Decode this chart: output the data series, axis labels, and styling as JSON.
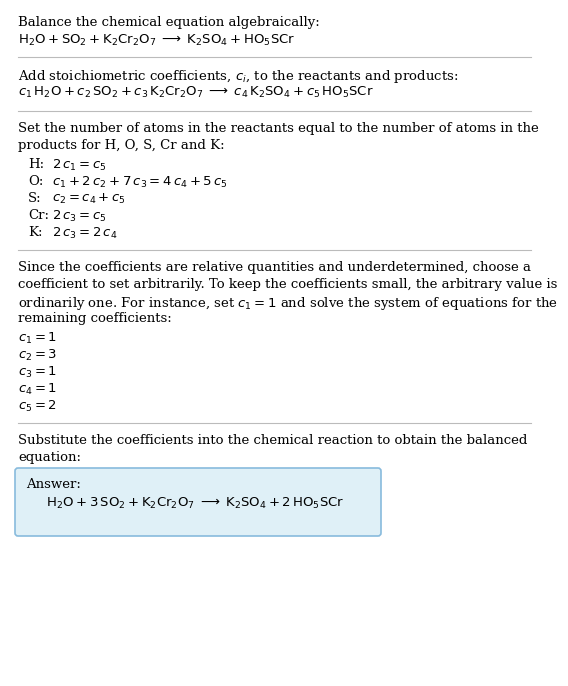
{
  "bg_color": "#ffffff",
  "line_color": "#bbbbbb",
  "answer_box_color": "#dff0f7",
  "answer_box_border": "#88bbdd",
  "text_color": "#000000",
  "title": "Balance the chemical equation algebraically:",
  "eq1": "$\\mathrm{H_2O + SO_2 + K_2Cr_2O_7 \\;\\longrightarrow\\; K_2SO_4 + HO_5SCr}$",
  "sec2_text": "Add stoichiometric coefficients, $c_i$, to the reactants and products:",
  "eq2": "$c_1\\,\\mathrm{H_2O} + c_2\\,\\mathrm{SO_2} + c_3\\,\\mathrm{K_2Cr_2O_7} \\;\\longrightarrow\\; c_4\\,\\mathrm{K_2SO_4} + c_5\\,\\mathrm{HO_5SCr}$",
  "sec3_text1": "Set the number of atoms in the reactants equal to the number of atoms in the",
  "sec3_text2": "products for H, O, S, Cr and K:",
  "equations": [
    [
      "H:",
      "$2\\,c_1 = c_5$"
    ],
    [
      "O:",
      "$c_1 + 2\\,c_2 + 7\\,c_3 = 4\\,c_4 + 5\\,c_5$"
    ],
    [
      "S:",
      "$c_2 = c_4 + c_5$"
    ],
    [
      "Cr:",
      "$2\\,c_3 = c_5$"
    ],
    [
      "K:",
      "$2\\,c_3 = 2\\,c_4$"
    ]
  ],
  "sec4_lines": [
    "Since the coefficients are relative quantities and underdetermined, choose a",
    "coefficient to set arbitrarily. To keep the coefficients small, the arbitrary value is",
    "ordinarily one. For instance, set $c_1 = 1$ and solve the system of equations for the",
    "remaining coefficients:"
  ],
  "solutions": [
    "$c_1 = 1$",
    "$c_2 = 3$",
    "$c_3 = 1$",
    "$c_4 = 1$",
    "$c_5 = 2$"
  ],
  "sec5_text1": "Substitute the coefficients into the chemical reaction to obtain the balanced",
  "sec5_text2": "equation:",
  "answer_label": "Answer:",
  "answer_eq": "$\\mathrm{H_2O + 3\\,SO_2 + K_2Cr_2O_7 \\;\\longrightarrow\\; K_2SO_4 + 2\\,HO_5SCr}$"
}
